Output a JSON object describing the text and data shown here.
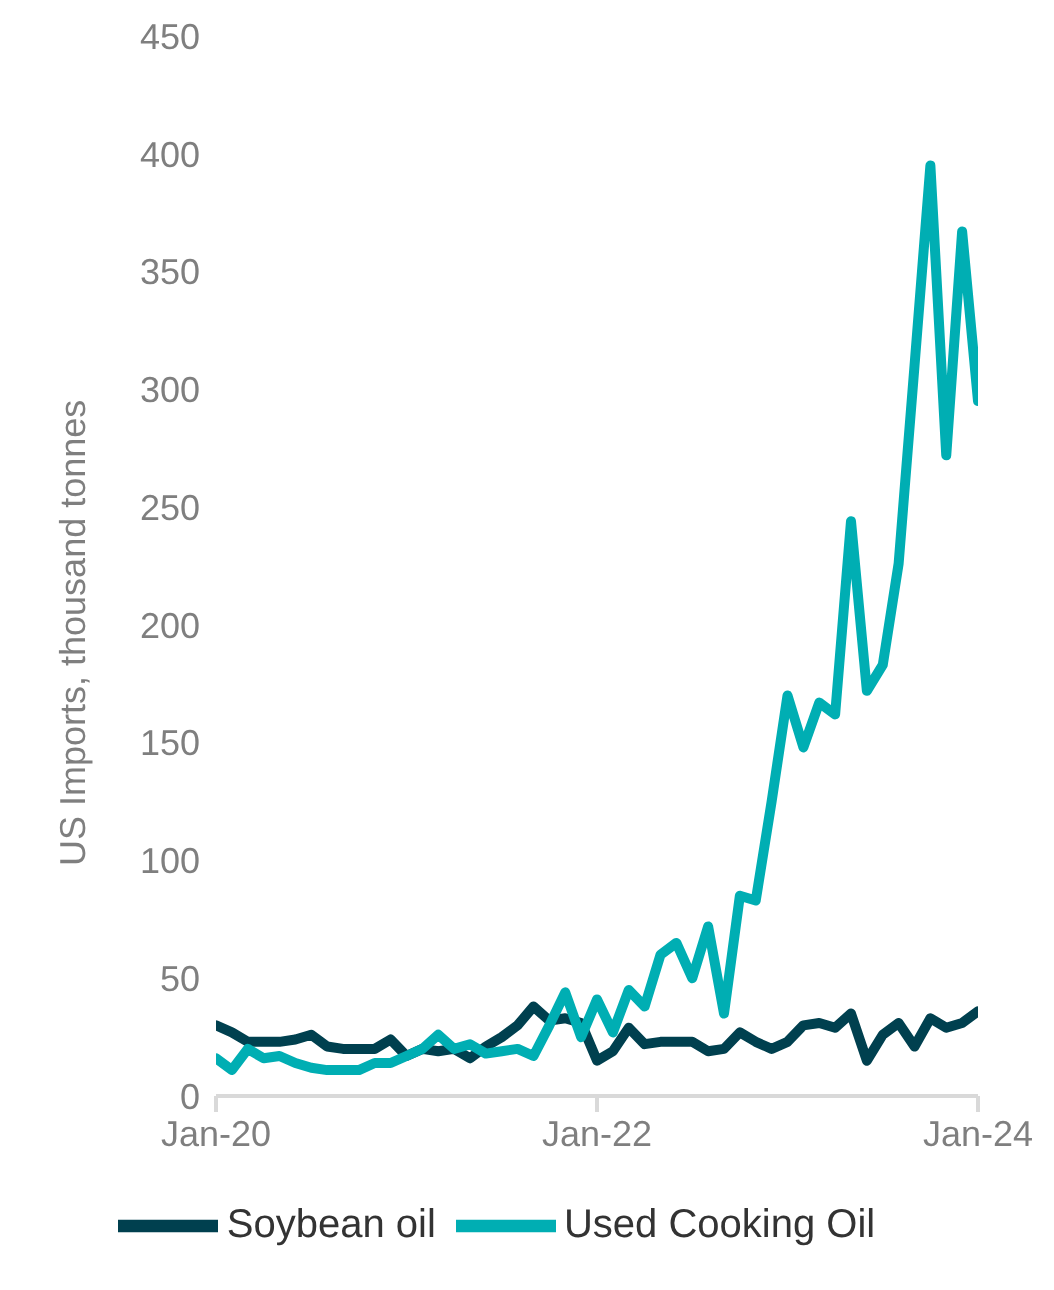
{
  "chart_data": {
    "type": "line",
    "ylabel": "US Imports, thousand tonnes",
    "x": [
      "2020-01",
      "2020-02",
      "2020-03",
      "2020-04",
      "2020-05",
      "2020-06",
      "2020-07",
      "2020-08",
      "2020-09",
      "2020-10",
      "2020-11",
      "2020-12",
      "2021-01",
      "2021-02",
      "2021-03",
      "2021-04",
      "2021-05",
      "2021-06",
      "2021-07",
      "2021-08",
      "2021-09",
      "2021-10",
      "2021-11",
      "2021-12",
      "2022-01",
      "2022-02",
      "2022-03",
      "2022-04",
      "2022-05",
      "2022-06",
      "2022-07",
      "2022-08",
      "2022-09",
      "2022-10",
      "2022-11",
      "2022-12",
      "2023-01",
      "2023-02",
      "2023-03",
      "2023-04",
      "2023-05",
      "2023-06",
      "2023-07",
      "2023-08",
      "2023-09",
      "2023-10",
      "2023-11",
      "2023-12",
      "2024-01"
    ],
    "series": [
      {
        "name": "Soybean oil",
        "color": "#00404f",
        "values": [
          30,
          27,
          23,
          23,
          23,
          24,
          26,
          21,
          20,
          20,
          20,
          24,
          17,
          20,
          19,
          20,
          16,
          21,
          25,
          30,
          38,
          32,
          33,
          31,
          15,
          19,
          29,
          22,
          23,
          23,
          23,
          19,
          20,
          27,
          23,
          20,
          23,
          30,
          31,
          29,
          35,
          15,
          26,
          31,
          21,
          33,
          29,
          31,
          36
        ]
      },
      {
        "name": "Used Cooking Oil",
        "color": "#00aeb3",
        "values": [
          16,
          11,
          20,
          16,
          17,
          14,
          12,
          11,
          11,
          11,
          14,
          14,
          17,
          20,
          26,
          20,
          22,
          18,
          19,
          20,
          17,
          30,
          44,
          25,
          41,
          27,
          45,
          38,
          60,
          65,
          50,
          72,
          35,
          85,
          83,
          125,
          170,
          148,
          167,
          162,
          244,
          172,
          183,
          226,
          310,
          395,
          272,
          367,
          295
        ]
      }
    ],
    "xlim": [
      "2020-01",
      "2024-01"
    ],
    "xticks": [
      {
        "value": "2020-01",
        "label": "Jan-20"
      },
      {
        "value": "2022-01",
        "label": "Jan-22"
      },
      {
        "value": "2024-01",
        "label": "Jan-24"
      }
    ],
    "ylim": [
      0,
      450
    ],
    "yticks": [
      0,
      50,
      100,
      150,
      200,
      250,
      300,
      350,
      400,
      450
    ],
    "grid": false,
    "legend": "bottom",
    "marker": "none",
    "line_style": "solid"
  }
}
